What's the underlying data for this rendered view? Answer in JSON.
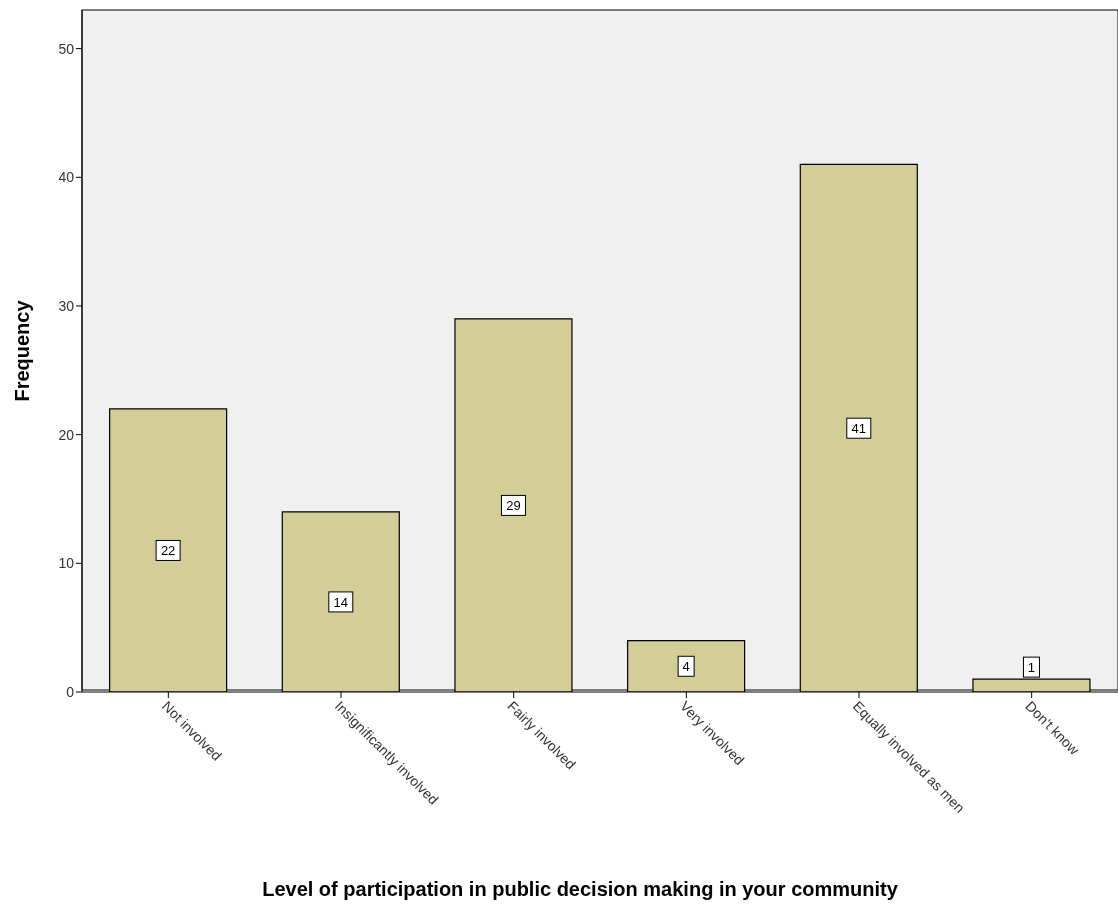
{
  "chart_data": {
    "type": "bar",
    "xlabel": "Level of participation in public decision making in your community",
    "ylabel": "Frequency",
    "categories": [
      "Not involved",
      "Insignificantly involved",
      "Fairly involved",
      "Very involved",
      "Equally involved as men",
      "Don't know"
    ],
    "values": [
      22,
      14,
      29,
      4,
      41,
      1
    ],
    "color": "#d3ce97",
    "ylim": [
      0,
      53
    ],
    "yticks": [
      0,
      10,
      20,
      30,
      40,
      50
    ],
    "grid": false,
    "data_labels": true,
    "legend": false
  }
}
